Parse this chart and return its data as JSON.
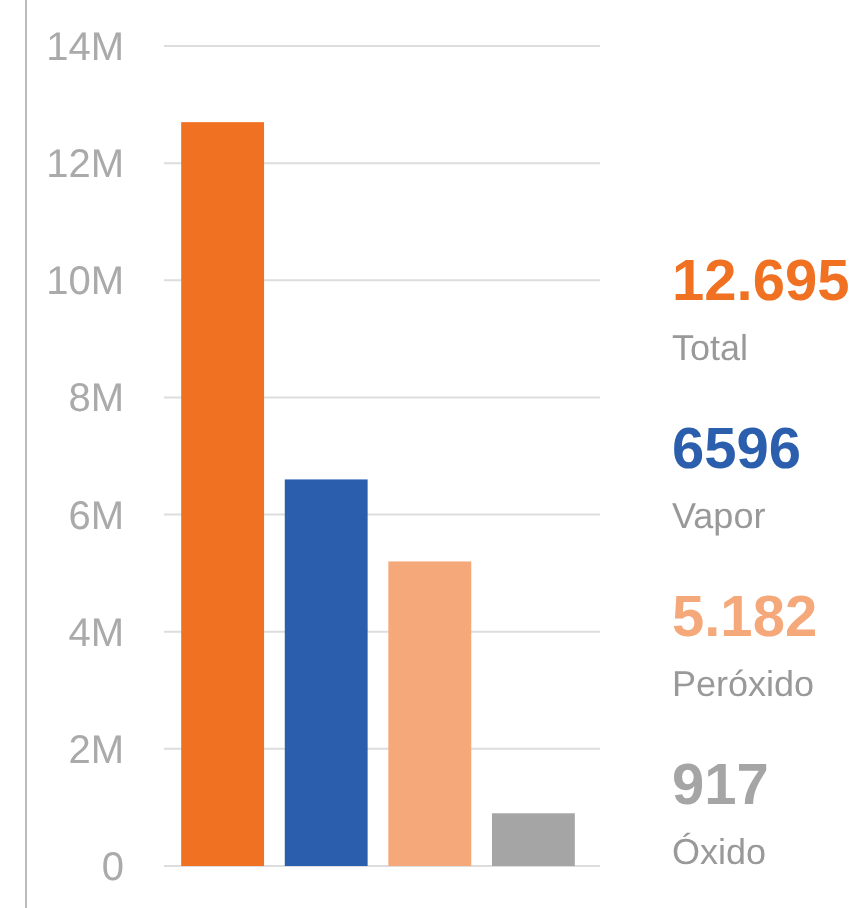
{
  "chart_data": {
    "type": "bar",
    "categories": [
      null,
      null,
      null,
      null
    ],
    "values": [
      12.7,
      6.6,
      5.2,
      0.9
    ],
    "colors": [
      "#f07122",
      "#2b5fad",
      "#f5a97a",
      "#a5a5a5"
    ],
    "annotations": [
      "12.695",
      "Total",
      "6596",
      "Vapor",
      "5.182",
      "Peróxido",
      "917",
      "Óxido"
    ],
    "ylim": [
      0,
      14
    ],
    "yticks": [
      {
        "value": 0,
        "label": "0"
      },
      {
        "value": 2,
        "label": "2M"
      },
      {
        "value": 4,
        "label": "4M"
      },
      {
        "value": 6,
        "label": "6M"
      },
      {
        "value": 8,
        "label": "8M"
      },
      {
        "value": 10,
        "label": "10M"
      },
      {
        "value": 12,
        "label": "12M"
      },
      {
        "value": 14,
        "label": "14M"
      }
    ],
    "grid": "y"
  }
}
